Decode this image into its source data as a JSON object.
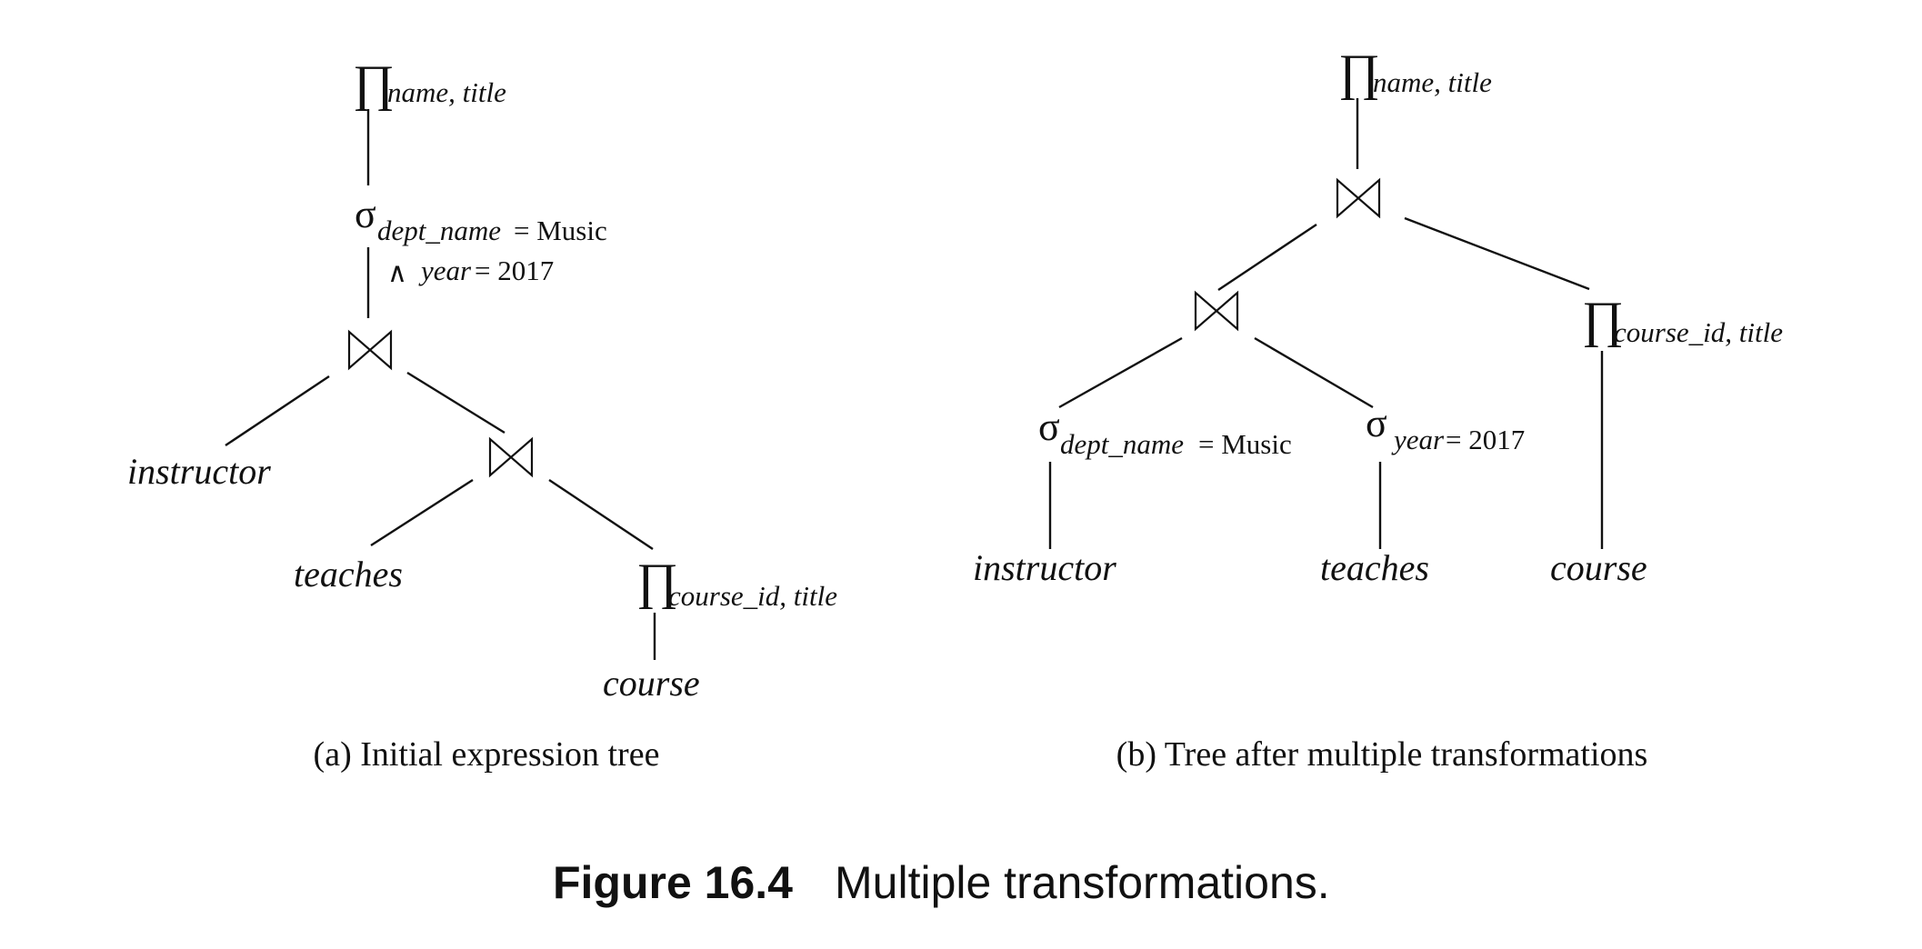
{
  "symbols": {
    "projection": "∏",
    "selection": "σ",
    "and": "∧"
  },
  "tree_a": {
    "caption": "(a) Initial expression tree",
    "root_projection_sub": "name, title",
    "selection_sub": "dept_name",
    "selection_cond1_rest": " = Music",
    "selection_cond2_attr": "year",
    "selection_cond2_rest": " = 2017",
    "left_leaf": "instructor",
    "inner_left_leaf": "teaches",
    "inner_projection_sub": "course_id, title",
    "bottom_leaf": "course"
  },
  "tree_b": {
    "caption": "(b) Tree after multiple transformations",
    "root_projection_sub": "name, title",
    "selection1_sub": "dept_name",
    "selection1_rest": " = Music",
    "selection2_sub": "year",
    "selection2_rest": " = 2017",
    "leaf1": "instructor",
    "leaf2": "teaches",
    "right_projection_sub": "course_id, title",
    "leaf3": "course"
  },
  "figure": {
    "label": "Figure 16.4",
    "title": "Multiple transformations."
  }
}
